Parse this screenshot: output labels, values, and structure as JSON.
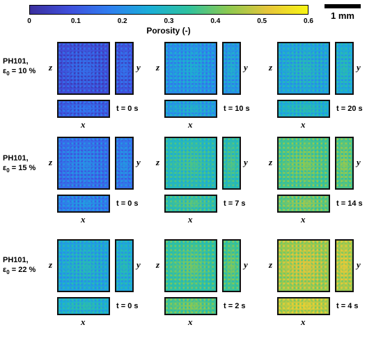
{
  "colorbar": {
    "label": "Porosity (-)",
    "ticks": [
      "0",
      "0.1",
      "0.2",
      "0.3",
      "0.4",
      "0.5",
      "0.6"
    ],
    "colors": [
      "#3b2f9e",
      "#3f4fdc",
      "#2f7ef0",
      "#1aaed8",
      "#2fc29e",
      "#8cc950",
      "#e7c63a",
      "#f8f514"
    ]
  },
  "scale": {
    "label": "1 mm"
  },
  "axes": {
    "z": "z",
    "y": "y",
    "x": "x"
  },
  "rows": [
    {
      "name": "PH101,",
      "eps_symbol": "ε",
      "eps_sub": "0",
      "eps_value": " = 10 %",
      "times": [
        "t = 0 s",
        "t = 10 s",
        "t = 20 s"
      ],
      "levels": [
        0.08,
        0.2,
        0.24
      ]
    },
    {
      "name": "PH101,",
      "eps_symbol": "ε",
      "eps_sub": "0",
      "eps_value": " = 15 %",
      "times": [
        "t = 0 s",
        "t = 7 s",
        "t = 14 s"
      ],
      "levels": [
        0.14,
        0.3,
        0.36
      ]
    },
    {
      "name": "PH101,",
      "eps_symbol": "ε",
      "eps_sub": "0",
      "eps_value": " = 22 %",
      "times": [
        "t = 0 s",
        "t = 2 s",
        "t = 4 s"
      ],
      "levels": [
        0.24,
        0.34,
        0.44
      ]
    }
  ]
}
